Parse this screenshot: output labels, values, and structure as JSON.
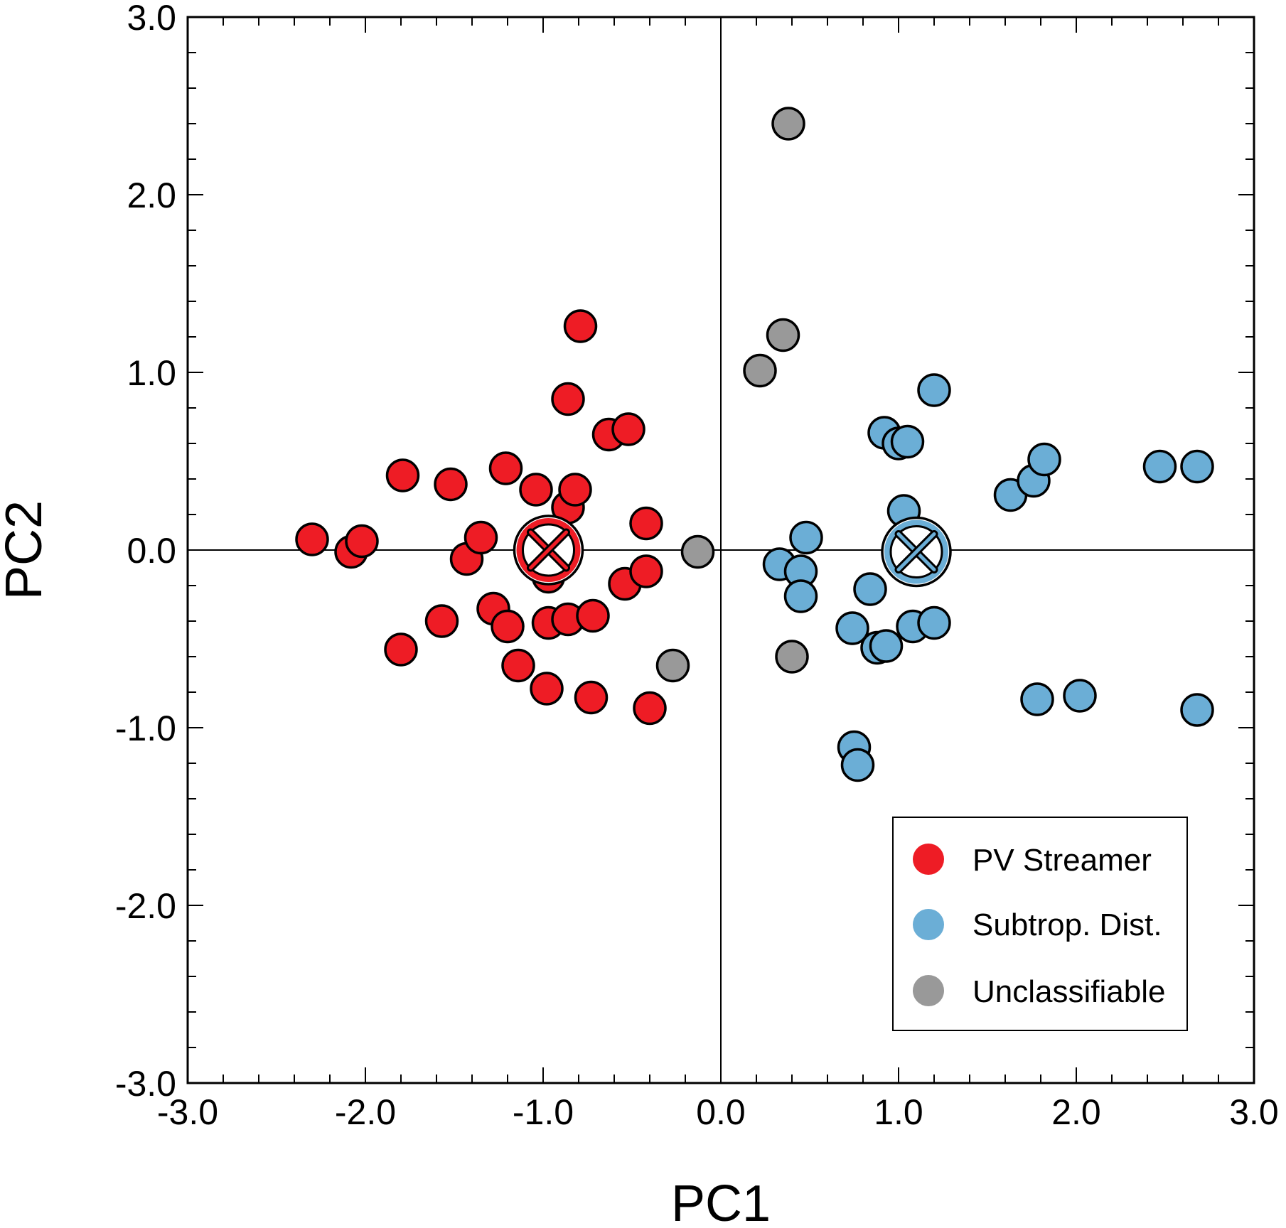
{
  "chart_data": {
    "type": "scatter",
    "title": "",
    "xlabel": "PC1",
    "ylabel": "PC2",
    "xlim": [
      -3.0,
      3.0
    ],
    "ylim": [
      -3.0,
      3.0
    ],
    "xticks": [
      "-3.0",
      "-2.0",
      "-1.0",
      "0.0",
      "1.0",
      "2.0",
      "3.0"
    ],
    "yticks": [
      "3.0",
      "2.0",
      "1.0",
      "0.0",
      "-1.0",
      "-2.0",
      "-3.0"
    ],
    "xtick_values": [
      -3,
      -2,
      -1,
      0,
      1,
      2,
      3
    ],
    "ytick_values": [
      3,
      2,
      1,
      0,
      -1,
      -2,
      -3
    ],
    "minor_tick_step": 0.2,
    "zero_lines": true,
    "grid": false,
    "legend_position": "bottom-right",
    "series": [
      {
        "name": "PV Streamer",
        "color": "#ee1c25",
        "points": [
          [
            -2.3,
            0.06
          ],
          [
            -2.08,
            -0.01
          ],
          [
            -2.02,
            0.05
          ],
          [
            -1.79,
            0.42
          ],
          [
            -1.8,
            -0.56
          ],
          [
            -1.57,
            -0.4
          ],
          [
            -1.52,
            0.37
          ],
          [
            -1.43,
            -0.05
          ],
          [
            -1.35,
            0.07
          ],
          [
            -1.28,
            -0.33
          ],
          [
            -1.21,
            0.46
          ],
          [
            -1.2,
            -0.43
          ],
          [
            -1.14,
            -0.65
          ],
          [
            -1.04,
            0.34
          ],
          [
            -0.98,
            -0.78
          ],
          [
            -0.97,
            -0.41
          ],
          [
            -0.97,
            -0.15
          ],
          [
            -0.86,
            0.24
          ],
          [
            -0.86,
            -0.39
          ],
          [
            -0.86,
            0.85
          ],
          [
            -0.82,
            0.34
          ],
          [
            -0.79,
            1.26
          ],
          [
            -0.72,
            -0.37
          ],
          [
            -0.73,
            -0.83
          ],
          [
            -0.63,
            0.65
          ],
          [
            -0.52,
            0.68
          ],
          [
            -0.54,
            -0.19
          ],
          [
            -0.42,
            -0.12
          ],
          [
            -0.42,
            0.15
          ],
          [
            -0.4,
            -0.89
          ]
        ]
      },
      {
        "name": "Subtrop. Dist.",
        "color": "#6baed6",
        "points": [
          [
            0.33,
            -0.08
          ],
          [
            0.45,
            -0.12
          ],
          [
            0.48,
            0.07
          ],
          [
            0.45,
            -0.26
          ],
          [
            0.74,
            -0.44
          ],
          [
            0.75,
            -1.11
          ],
          [
            0.77,
            -1.21
          ],
          [
            0.84,
            -0.22
          ],
          [
            0.88,
            -0.55
          ],
          [
            0.93,
            -0.54
          ],
          [
            0.92,
            0.66
          ],
          [
            1.0,
            0.6
          ],
          [
            1.05,
            0.61
          ],
          [
            1.03,
            0.22
          ],
          [
            1.08,
            -0.43
          ],
          [
            1.2,
            -0.41
          ],
          [
            1.2,
            0.9
          ],
          [
            1.63,
            0.31
          ],
          [
            1.76,
            0.39
          ],
          [
            1.82,
            0.51
          ],
          [
            1.78,
            -0.84
          ],
          [
            2.02,
            -0.82
          ],
          [
            2.47,
            0.47
          ],
          [
            2.68,
            0.47
          ],
          [
            2.68,
            -0.9
          ]
        ]
      },
      {
        "name": "Unclassifiable",
        "color": "#999999",
        "points": [
          [
            0.38,
            2.4
          ],
          [
            0.35,
            1.21
          ],
          [
            0.22,
            1.01
          ],
          [
            -0.13,
            -0.01
          ],
          [
            -0.27,
            -0.65
          ],
          [
            0.4,
            -0.6
          ]
        ]
      }
    ],
    "centroids": [
      {
        "series": "PV Streamer",
        "x": -0.97,
        "y": 0.0,
        "color": "#ee1c25"
      },
      {
        "series": "Subtrop. Dist.",
        "x": 1.1,
        "y": -0.01,
        "color": "#6baed6"
      }
    ]
  }
}
